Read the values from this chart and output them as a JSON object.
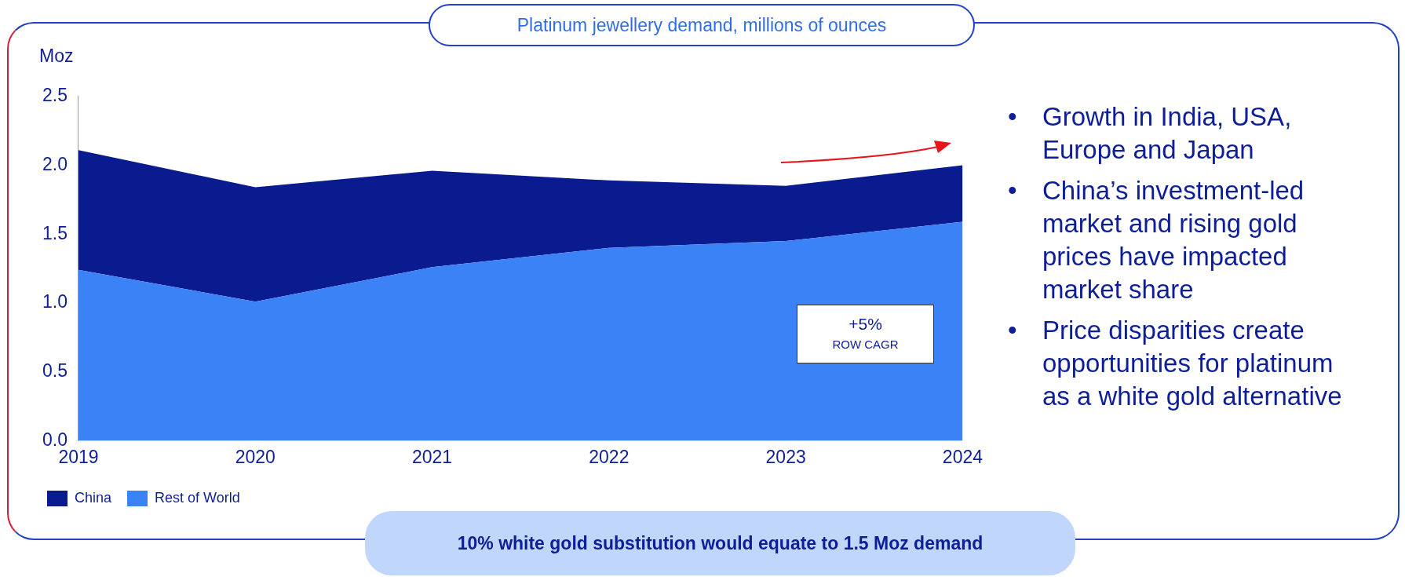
{
  "chart_data": {
    "type": "area",
    "title": "Platinum jewellery demand, millions of ounces",
    "ylabel": "Moz",
    "stacked": true,
    "categories": [
      "2019",
      "2020",
      "2021",
      "2022",
      "2023",
      "2024"
    ],
    "series": [
      {
        "name": "Rest of World",
        "color": "#3a82f6",
        "values": [
          1.24,
          1.01,
          1.26,
          1.4,
          1.45,
          1.59
        ]
      },
      {
        "name": "China",
        "color": "#0a1a8f",
        "values": [
          0.87,
          0.83,
          0.7,
          0.49,
          0.4,
          0.41
        ]
      }
    ],
    "ylim": [
      0,
      2.5
    ],
    "yticks": [
      {
        "value": 0,
        "label": "0.0"
      },
      {
        "value": 0.5,
        "label": "0.5"
      },
      {
        "value": 1,
        "label": "1.0"
      },
      {
        "value": 1.5,
        "label": "1.5"
      },
      {
        "value": 2,
        "label": "2.0"
      },
      {
        "value": 2.5,
        "label": "2.5"
      }
    ],
    "grid": false,
    "legend": "bottom left",
    "annotations": [
      "+5%",
      "ROW CAGR",
      "• Growth in India, USA, Europe and Japan",
      "• China’s investment-led market and rising gold prices have impacted market share",
      "• Price disparities create opportunities for platinum as a white gold alternative",
      "10% white gold substitution would equate to 1.5 Moz demand"
    ]
  }
}
